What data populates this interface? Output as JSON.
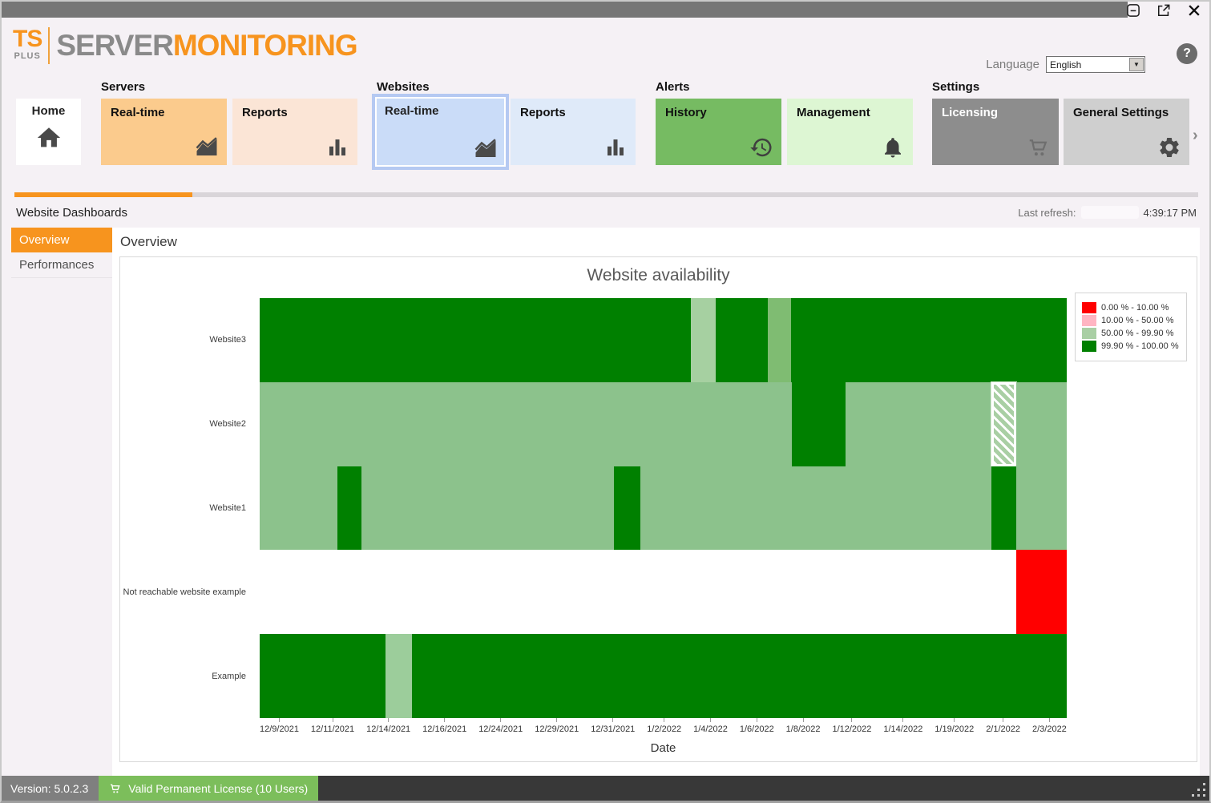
{
  "window": {
    "controls": {
      "minimize": "minimize",
      "popout": "pop-out",
      "close": "close"
    }
  },
  "header": {
    "logo": {
      "ts": "TS",
      "plus": "PLUS",
      "server": "SERVER",
      "monitoring": "MONITORING"
    },
    "language_label": "Language",
    "language_value": "English",
    "help_label": "?"
  },
  "nav": {
    "home_label": "Home",
    "groups": [
      {
        "label": "Servers",
        "buttons": [
          {
            "label": "Real-time",
            "icon": "area-chart-icon"
          },
          {
            "label": "Reports",
            "icon": "bar-chart-icon"
          }
        ]
      },
      {
        "label": "Websites",
        "buttons": [
          {
            "label": "Real-time",
            "icon": "area-chart-icon",
            "selected": true
          },
          {
            "label": "Reports",
            "icon": "bar-chart-icon"
          }
        ]
      },
      {
        "label": "Alerts",
        "buttons": [
          {
            "label": "History",
            "icon": "history-clock-icon"
          },
          {
            "label": "Management",
            "icon": "bell-icon"
          }
        ]
      },
      {
        "label": "Settings",
        "buttons": [
          {
            "label": "Licensing",
            "icon": "shopping-cart-icon"
          },
          {
            "label": "General Settings",
            "icon": "gear-icon"
          }
        ]
      }
    ],
    "chevron": "›"
  },
  "subheader": {
    "title": "Website Dashboards",
    "last_refresh_label": "Last refresh:",
    "last_refresh_time": "4:39:17 PM"
  },
  "sidebar": {
    "items": [
      {
        "label": "Overview",
        "active": true
      },
      {
        "label": "Performances",
        "active": false
      }
    ]
  },
  "main": {
    "heading": "Overview"
  },
  "chart_data": {
    "type": "heatmap",
    "title": "Website availability",
    "xlabel": "Date",
    "legend_position": "top-right",
    "x_ticks": [
      "12/9/2021",
      "12/11/2021",
      "12/14/2021",
      "12/16/2021",
      "12/24/2021",
      "12/29/2021",
      "12/31/2021",
      "1/2/2022",
      "1/4/2022",
      "1/6/2022",
      "1/8/2022",
      "1/12/2022",
      "1/14/2022",
      "1/19/2022",
      "2/1/2022",
      "2/3/2022"
    ],
    "legend": [
      {
        "label": "0.00 % - 10.00 %",
        "color": "#ff0000"
      },
      {
        "label": "10.00 % - 50.00 %",
        "color": "#ffb5c2"
      },
      {
        "label": "50.00 % - 99.90 %",
        "color": "#a9cfa4"
      },
      {
        "label": "99.90 % - 100.00 %",
        "color": "#008000"
      }
    ],
    "rows": [
      {
        "name": "Website3",
        "segments": [
          {
            "bucket": "99.90 % - 100.00 %",
            "color": "#008000",
            "width_pct": 53.4
          },
          {
            "bucket": "50.00 % - 99.90 %",
            "color": "#a6d0a1",
            "width_pct": 3.1
          },
          {
            "bucket": "99.90 % - 100.00 %",
            "color": "#008000",
            "width_pct": 6.5
          },
          {
            "bucket": "50.00 % - 99.90 %",
            "color": "#7fbc72",
            "width_pct": 2.8
          },
          {
            "bucket": "99.90 % - 100.00 %",
            "color": "#008000",
            "width_pct": 34.2
          }
        ]
      },
      {
        "name": "Website2",
        "segments": [
          {
            "bucket": "50.00 % - 99.90 %",
            "color": "#8cc28c",
            "width_pct": 65.9
          },
          {
            "bucket": "99.90 % - 100.00 %",
            "color": "#008000",
            "width_pct": 6.7
          },
          {
            "bucket": "50.00 % - 99.90 %",
            "color": "#8cc28c",
            "width_pct": 18.1
          },
          {
            "bucket": "no-data-highlight",
            "pattern": "hatch",
            "width_pct": 3.0
          },
          {
            "bucket": "50.00 % - 99.90 %",
            "color": "#8cc28c",
            "width_pct": 6.3
          }
        ]
      },
      {
        "name": "Website1",
        "segments": [
          {
            "bucket": "50.00 % - 99.90 %",
            "color": "#8cc28c",
            "width_pct": 9.6
          },
          {
            "bucket": "99.90 % - 100.00 %",
            "color": "#008000",
            "width_pct": 3.0
          },
          {
            "bucket": "50.00 % - 99.90 %",
            "color": "#8cc28c",
            "width_pct": 31.3
          },
          {
            "bucket": "99.90 % - 100.00 %",
            "color": "#008000",
            "width_pct": 3.3
          },
          {
            "bucket": "50.00 % - 99.90 %",
            "color": "#8cc28c",
            "width_pct": 43.5
          },
          {
            "bucket": "99.90 % - 100.00 %",
            "color": "#008000",
            "width_pct": 3.0
          },
          {
            "bucket": "50.00 % - 99.90 %",
            "color": "#8cc28c",
            "width_pct": 6.3
          }
        ]
      },
      {
        "name": "Not reachable website example",
        "segments": [
          {
            "bucket": "no-data",
            "color": "#ffffff",
            "width_pct": 93.7
          },
          {
            "bucket": "0.00 % - 10.00 %",
            "color": "#ff0000",
            "width_pct": 6.3
          }
        ]
      },
      {
        "name": "Example",
        "segments": [
          {
            "bucket": "99.90 % - 100.00 %",
            "color": "#008000",
            "width_pct": 15.6
          },
          {
            "bucket": "50.00 % - 99.90 %",
            "color": "#9ccd9b",
            "width_pct": 3.3
          },
          {
            "bucket": "99.90 % - 100.00 %",
            "color": "#008000",
            "width_pct": 81.1
          }
        ]
      }
    ]
  },
  "statusbar": {
    "version": "Version: 5.0.2.3",
    "license": "Valid Permanent License (10 Users)"
  },
  "colors": {
    "accent_orange": "#f7941e",
    "titlebar_gray": "#767676",
    "status_green": "#7cbe5b",
    "heat_dark_green": "#008000",
    "heat_light_green": "#8cc28c",
    "heat_red": "#ff0000"
  }
}
